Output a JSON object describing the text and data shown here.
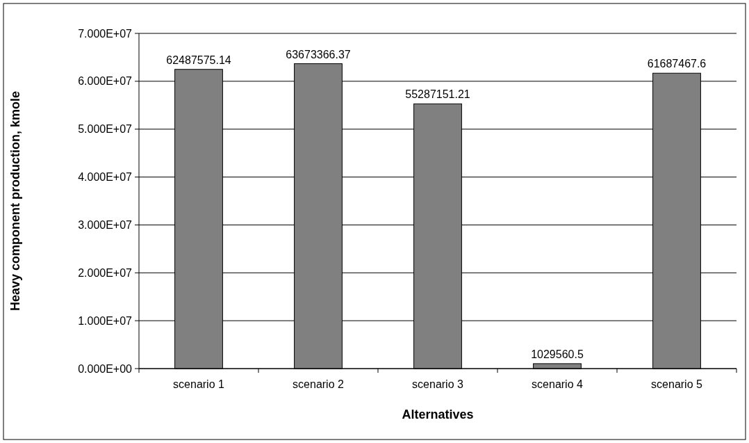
{
  "chart_data": {
    "type": "bar",
    "xlabel": "Alternatives",
    "ylabel": "Heavy component production, kmole",
    "categories": [
      "scenario 1",
      "scenario 2",
      "scenario 3",
      "scenario 4",
      "scenario 5"
    ],
    "values": [
      62487575.14,
      63673366.37,
      55287151.21,
      1029560.5,
      61687467.6
    ],
    "color": "#808080",
    "data_labels": true,
    "grid": "y",
    "ylim": [
      0,
      70000000
    ],
    "yticks": [
      {
        "value": 0,
        "label": "0.000E+00"
      },
      {
        "value": 10000000,
        "label": "1.000E+07"
      },
      {
        "value": 20000000,
        "label": "2.000E+07"
      },
      {
        "value": 30000000,
        "label": "3.000E+07"
      },
      {
        "value": 40000000,
        "label": "4.000E+07"
      },
      {
        "value": 50000000,
        "label": "5.000E+07"
      },
      {
        "value": 60000000,
        "label": "6.000E+07"
      },
      {
        "value": 70000000,
        "label": "7.000E+07"
      }
    ]
  }
}
